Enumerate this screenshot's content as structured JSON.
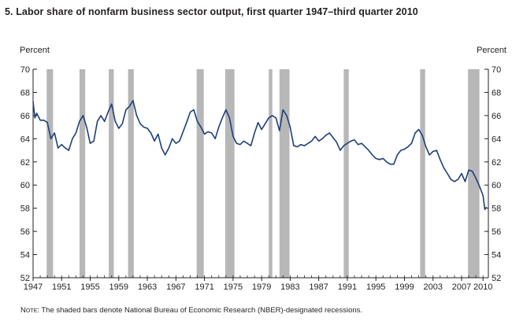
{
  "title": "5. Labor share of nonfarm business sector output, first quarter 1947–third quarter 2010",
  "note_label": "Note:",
  "note_text": "The shaded bars denote National Bureau of Economic Research (NBER)-designated recessions.",
  "colors": {
    "line": "#1f3f7a",
    "recession": "#b7b7b7",
    "axis": "#231f20"
  },
  "chart_data": {
    "type": "line",
    "title": "5. Labor share of nonfarm business sector output, first quarter 1947–third quarter 2010",
    "ylabel_left": "Percent",
    "ylabel_right": "Percent",
    "xlabel": "",
    "xlim": [
      1947,
      2010.75
    ],
    "ylim": [
      52,
      70
    ],
    "yticks": [
      52,
      54,
      56,
      58,
      60,
      62,
      64,
      66,
      68,
      70
    ],
    "xticks": [
      "1947",
      "1951",
      "1955",
      "1959",
      "1963",
      "1967",
      "1971",
      "1975",
      "1979",
      "1983",
      "1987",
      "1991",
      "1995",
      "1999",
      "2003",
      "2007",
      "2010"
    ],
    "grid": false,
    "legend": "none",
    "recessions": [
      [
        1948.9,
        1949.8
      ],
      [
        1953.5,
        1954.3
      ],
      [
        1957.6,
        1958.3
      ],
      [
        1960.3,
        1961.1
      ],
      [
        1969.9,
        1970.9
      ],
      [
        1973.9,
        1975.2
      ],
      [
        1980.0,
        1980.5
      ],
      [
        1981.5,
        1982.9
      ],
      [
        1990.5,
        1991.2
      ],
      [
        2001.2,
        2001.9
      ],
      [
        2007.9,
        2009.5
      ]
    ],
    "series": [
      {
        "x": [
          1947.0,
          1947.25,
          1947.5,
          1948.0,
          1948.5,
          1949.0,
          1949.5,
          1950.0,
          1950.5,
          1951.0,
          1951.5,
          1952.0,
          1952.5,
          1953.0,
          1953.5,
          1954.0,
          1954.5,
          1955.0,
          1955.5,
          1956.0,
          1956.5,
          1957.0,
          1957.5,
          1958.0,
          1958.5,
          1959.0,
          1959.5,
          1960.0,
          1960.5,
          1961.0,
          1961.5,
          1962.0,
          1962.5,
          1963.0,
          1963.5,
          1964.0,
          1964.5,
          1965.0,
          1965.5,
          1966.0,
          1966.5,
          1967.0,
          1967.5,
          1968.0,
          1968.5,
          1969.0,
          1969.5,
          1970.0,
          1970.5,
          1971.0,
          1971.5,
          1972.0,
          1972.5,
          1973.0,
          1973.5,
          1974.0,
          1974.5,
          1975.0,
          1975.5,
          1976.0,
          1976.5,
          1977.0,
          1977.5,
          1978.0,
          1978.5,
          1979.0,
          1979.5,
          1980.0,
          1980.5,
          1981.0,
          1981.5,
          1982.0,
          1982.5,
          1983.0,
          1983.5,
          1984.0,
          1984.5,
          1985.0,
          1985.5,
          1986.0,
          1986.5,
          1987.0,
          1987.5,
          1988.0,
          1988.5,
          1989.0,
          1989.5,
          1990.0,
          1990.5,
          1991.0,
          1991.5,
          1992.0,
          1992.5,
          1993.0,
          1993.5,
          1994.0,
          1994.5,
          1995.0,
          1995.5,
          1996.0,
          1996.5,
          1997.0,
          1997.5,
          1998.0,
          1998.5,
          1999.0,
          1999.5,
          2000.0,
          2000.5,
          2001.0,
          2001.5,
          2002.0,
          2002.5,
          2003.0,
          2003.5,
          2004.0,
          2004.5,
          2005.0,
          2005.5,
          2006.0,
          2006.5,
          2007.0,
          2007.5,
          2008.0,
          2008.5,
          2009.0,
          2009.5,
          2010.0,
          2010.25,
          2010.5
        ],
        "values": [
          67.2,
          65.8,
          66.2,
          65.6,
          65.6,
          65.4,
          64.0,
          64.5,
          63.2,
          63.5,
          63.2,
          63.0,
          64.0,
          64.5,
          65.5,
          66.0,
          65.0,
          63.6,
          63.8,
          65.5,
          66.0,
          65.5,
          66.3,
          67.0,
          65.5,
          64.9,
          65.3,
          66.5,
          66.8,
          67.3,
          66.0,
          65.3,
          65.0,
          64.9,
          64.5,
          63.8,
          64.4,
          63.2,
          62.6,
          63.2,
          64.0,
          63.6,
          63.8,
          64.6,
          65.4,
          66.3,
          66.5,
          65.5,
          65.0,
          64.4,
          64.6,
          64.5,
          64.0,
          65.0,
          65.8,
          66.5,
          65.8,
          64.2,
          63.6,
          63.5,
          63.8,
          63.6,
          63.4,
          64.5,
          65.4,
          64.8,
          65.3,
          65.8,
          66.0,
          65.8,
          64.7,
          66.5,
          66.0,
          65.0,
          63.4,
          63.3,
          63.5,
          63.4,
          63.6,
          63.8,
          64.2,
          63.8,
          64.0,
          64.3,
          64.5,
          64.1,
          63.7,
          63.0,
          63.4,
          63.6,
          63.8,
          63.9,
          63.5,
          63.6,
          63.3,
          63.0,
          62.6,
          62.3,
          62.2,
          62.3,
          62.0,
          61.8,
          61.8,
          62.6,
          63.0,
          63.1,
          63.3,
          63.6,
          64.5,
          64.8,
          64.3,
          63.3,
          62.6,
          62.9,
          63.0,
          62.2,
          61.5,
          61.0,
          60.5,
          60.3,
          60.5,
          61.0,
          60.3,
          61.3,
          61.2,
          60.6,
          59.9,
          59.1,
          57.9,
          58.1
        ]
      }
    ]
  }
}
